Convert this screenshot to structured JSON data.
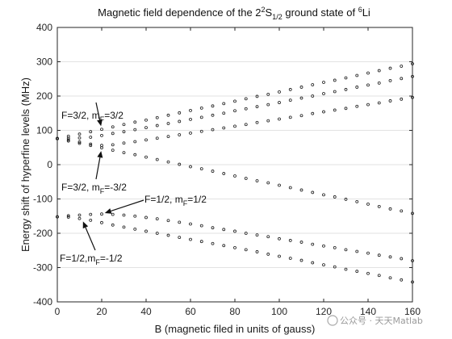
{
  "chart_data": {
    "type": "scatter",
    "title_parts": {
      "pre": "Magnetic field dependence of the 2",
      "sup1": "2",
      "mid": "S",
      "sub": "1/2",
      "post": " ground state of ",
      "sup2": "6",
      "end": "Li"
    },
    "xlabel": "B (magnetic filed in units of gauss)",
    "ylabel": "Energy shift of hyperfine levels (MHz)",
    "xlim": [
      0,
      160
    ],
    "ylim": [
      -400,
      400
    ],
    "xticks": [
      "0",
      "20",
      "40",
      "60",
      "80",
      "100",
      "120",
      "140",
      "160"
    ],
    "yticks": [
      "400",
      "300",
      "200",
      "100",
      "0",
      "-100",
      "-200",
      "-300",
      "-400"
    ],
    "grid": "horizontal",
    "marker": "open-circle",
    "x": [
      0,
      5,
      10,
      15,
      20,
      25,
      30,
      35,
      40,
      45,
      50,
      55,
      60,
      65,
      70,
      75,
      80,
      85,
      90,
      95,
      100,
      105,
      110,
      115,
      120,
      125,
      130,
      135,
      140,
      145,
      150,
      155,
      160
    ],
    "series": [
      {
        "values": [
          76,
          83,
          89,
          96,
          103,
          110,
          117,
          124,
          130,
          137,
          144,
          151,
          158,
          165,
          171,
          178,
          185,
          192,
          199,
          205,
          212,
          219,
          226,
          233,
          240,
          246,
          253,
          260,
          267,
          274,
          281,
          287,
          294
        ]
      },
      {
        "values": [
          76,
          77,
          78,
          80,
          85,
          91,
          96,
          102,
          108,
          114,
          120,
          126,
          132,
          138,
          144,
          150,
          157,
          163,
          169,
          175,
          181,
          188,
          194,
          200,
          207,
          213,
          219,
          226,
          232,
          238,
          245,
          251,
          257
        ]
      },
      {
        "values": [
          76,
          72,
          66,
          60,
          56,
          58,
          63,
          67,
          72,
          77,
          82,
          87,
          92,
          97,
          102,
          107,
          112,
          117,
          123,
          128,
          133,
          138,
          143,
          149,
          154,
          159,
          164,
          170,
          175,
          180,
          186,
          191,
          196
        ]
      },
      {
        "values": [
          76,
          69,
          62,
          56,
          49,
          42,
          35,
          29,
          22,
          15,
          8,
          1,
          -6,
          -12,
          -19,
          -26,
          -33,
          -40,
          -47,
          -53,
          -60,
          -67,
          -74,
          -81,
          -88,
          -94,
          -101,
          -108,
          -115,
          -122,
          -129,
          -135,
          -142
        ]
      },
      {
        "values": [
          -152,
          -149,
          -147,
          -145,
          -144,
          -145,
          -147,
          -150,
          -154,
          -158,
          -163,
          -168,
          -173,
          -178,
          -184,
          -189,
          -194,
          -200,
          -205,
          -210,
          -216,
          -221,
          -226,
          -232,
          -237,
          -242,
          -248,
          -253,
          -258,
          -264,
          -269,
          -274,
          -280
        ]
      },
      {
        "values": [
          -152,
          -153,
          -157,
          -162,
          -169,
          -176,
          -182,
          -188,
          -194,
          -200,
          -206,
          -212,
          -218,
          -224,
          -230,
          -236,
          -242,
          -248,
          -254,
          -261,
          -267,
          -273,
          -279,
          -286,
          -292,
          -298,
          -305,
          -311,
          -317,
          -323,
          -330,
          -336,
          -342
        ]
      }
    ],
    "annotations": [
      {
        "label_main": "F=3/2, m",
        "label_sub": "F",
        "label_tail": "=3/2",
        "x": 20,
        "y": 103
      },
      {
        "label_main": "F=3/2, m",
        "label_sub": "F",
        "label_tail": "=-3/2",
        "x": 20,
        "y": 49
      },
      {
        "label_main": "F=1/2, m",
        "label_sub": "F",
        "label_tail": "=1/2",
        "x": 20,
        "y": -144
      },
      {
        "label_main": "F=1/2,m",
        "label_sub": "F",
        "label_tail": "=-1/2",
        "x": 11,
        "y": -157
      }
    ]
  },
  "watermark": "公众号 · 天天Matlab"
}
